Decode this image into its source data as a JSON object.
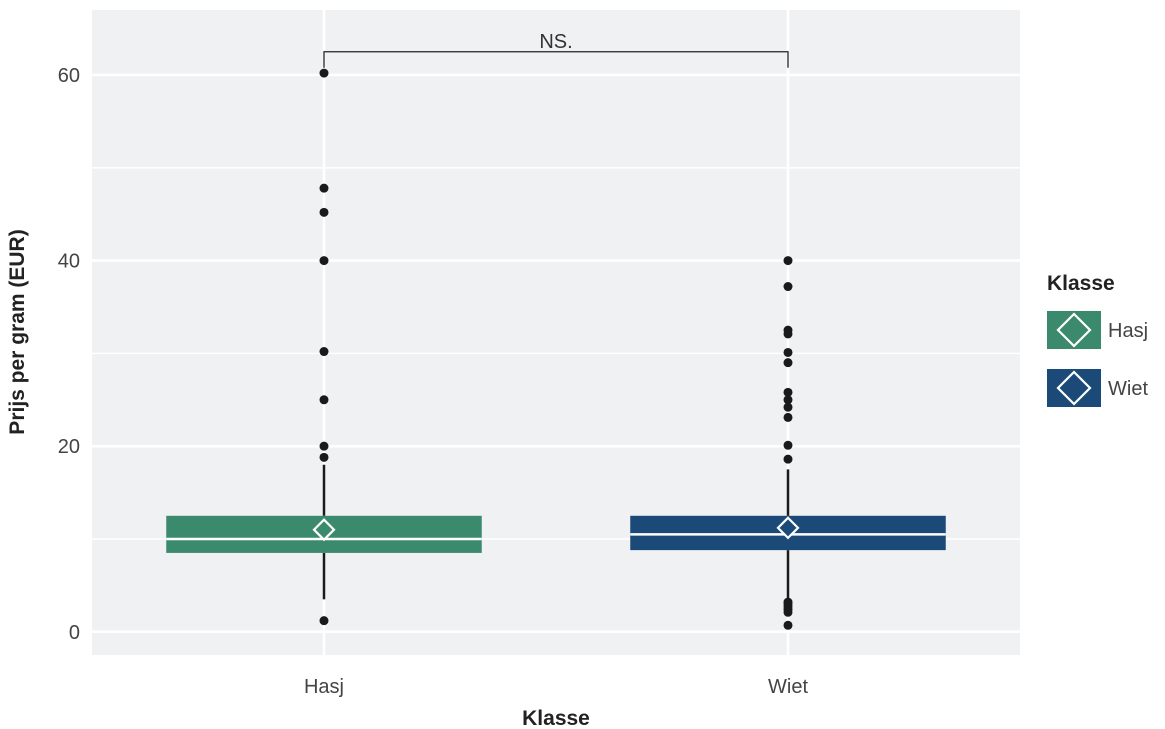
{
  "chart_data": {
    "type": "boxplot",
    "xlabel": "Klasse",
    "ylabel": "Prijs per gram (EUR)",
    "categories": [
      "Hasj",
      "Wiet"
    ],
    "ylim": [
      -2.5,
      67
    ],
    "y_ticks": [
      0,
      20,
      40,
      60
    ],
    "grid": true,
    "legend": {
      "title": "Klasse",
      "position": "right",
      "items": [
        {
          "label": "Hasj",
          "color": "#3b8a6e"
        },
        {
          "label": "Wiet",
          "color": "#1b4a78"
        }
      ]
    },
    "series": [
      {
        "name": "Hasj",
        "color": "#3b8a6e",
        "q1": 8.5,
        "median": 10,
        "q3": 12.5,
        "whisker_low": 3.5,
        "whisker_high": 18,
        "mean": 11,
        "outliers": [
          1.2,
          18.8,
          20,
          25,
          30.2,
          40,
          45.2,
          47.8,
          60.2
        ]
      },
      {
        "name": "Wiet",
        "color": "#1b4a78",
        "q1": 8.8,
        "median": 10.5,
        "q3": 12.5,
        "whisker_low": 3.5,
        "whisker_high": 17.5,
        "mean": 11.2,
        "outliers": [
          0.7,
          2.1,
          2.4,
          2.7,
          3.0,
          3.2,
          18.6,
          20.1,
          23.1,
          24.2,
          25,
          25.8,
          29,
          30.1,
          32.1,
          32.5,
          37.2,
          40
        ]
      }
    ],
    "annotation": {
      "text": "NS.",
      "from": "Hasj",
      "to": "Wiet",
      "y": 62.5
    }
  }
}
